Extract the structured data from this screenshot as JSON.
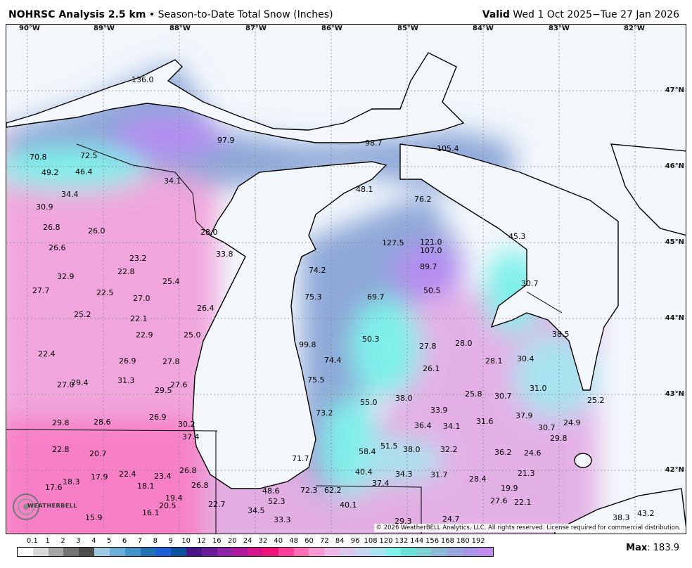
{
  "header": {
    "title_bold": "NOHRSC Analysis 2.5 km",
    "title_sep": "•",
    "title_rest": "Season-to-Date Total Snow (Inches)",
    "valid_label": "Valid",
    "valid_range": "Wed 1 Oct 2025−Tue 27 Jan 2026"
  },
  "longitudes": [
    "90°W",
    "89°W",
    "88°W",
    "87°W",
    "86°W",
    "85°W",
    "84°W",
    "83°W",
    "82°W"
  ],
  "latitudes": [
    "47°N",
    "46°N",
    "45°N",
    "44°N",
    "43°N",
    "42°N"
  ],
  "map_values": [
    "136.0",
    "97.9",
    "98.7",
    "105.4",
    "70.8",
    "72.5",
    "49.2",
    "46.4",
    "34.1",
    "34.4",
    "48.1",
    "76.2",
    "30.9",
    "26.8",
    "26.0",
    "28.0",
    "127.5",
    "121.0",
    "107.0",
    "45.3",
    "26.6",
    "33.8",
    "23.2",
    "22.8",
    "74.2",
    "89.7",
    "32.9",
    "25.4",
    "27.7",
    "22.5",
    "27.0",
    "26.4",
    "75.3",
    "69.7",
    "50.5",
    "30.7",
    "25.2",
    "22.1",
    "22.9",
    "25.0",
    "38.5",
    "99.8",
    "50.3",
    "27.8",
    "28.0",
    "22.4",
    "26.9",
    "27.8",
    "74.4",
    "28.1",
    "30.4",
    "26.1",
    "27.0",
    "29.4",
    "31.3",
    "29.5",
    "27.6",
    "75.5",
    "31.0",
    "25.8",
    "30.7",
    "55.0",
    "38.0",
    "25.2",
    "73.2",
    "33.9",
    "37.9",
    "26.9",
    "29.8",
    "28.6",
    "30.2",
    "36.4",
    "34.1",
    "31.6",
    "30.7",
    "24.9",
    "37.4",
    "29.8",
    "22.8",
    "20.7",
    "58.4",
    "51.5",
    "38.0",
    "32.2",
    "36.2",
    "24.6",
    "71.7",
    "26.8",
    "40.4",
    "34.3",
    "31.7",
    "21.3",
    "17.9",
    "22.4",
    "23.4",
    "17.6",
    "18.3",
    "37.4",
    "28.4",
    "18.1",
    "26.8",
    "48.6",
    "72.3",
    "62.2",
    "19.9",
    "19.4",
    "27.6",
    "22.1",
    "20.5",
    "22.7",
    "52.3",
    "40.1",
    "16.1",
    "34.5",
    "43.2",
    "15.9",
    "33.3",
    "29.3",
    "24.7",
    "38.3"
  ],
  "copyright": "© 2026 WeatherBELL Analytics, LLC. All rights reserved. License required for commercial distribution.",
  "logo_text": "WEATHERBELL",
  "legend": {
    "labels": [
      "0.1",
      "1",
      "2",
      "3",
      "4",
      "5",
      "6",
      "7",
      "8",
      "9",
      "10",
      "12",
      "16",
      "20",
      "24",
      "32",
      "40",
      "48",
      "60",
      "72",
      "84",
      "96",
      "108",
      "120",
      "132",
      "144",
      "156",
      "168",
      "180",
      "192"
    ],
    "colors": [
      "#ffffff",
      "#d9d9d9",
      "#a6a6a6",
      "#737373",
      "#4d4d4d",
      "#9ecae1",
      "#6baed6",
      "#4292c6",
      "#2171b5",
      "#1c5fd6",
      "#08519c",
      "#4a148c",
      "#6a1b9a",
      "#8e24aa",
      "#b0189e",
      "#d4148a",
      "#f0147a",
      "#ff3d9a",
      "#ff6fb5",
      "#f79ad3",
      "#efb6e8",
      "#dbc6f0",
      "#c7d4f2",
      "#a7e3f0",
      "#7ff0ea",
      "#6ee0dc",
      "#7fd0d2",
      "#8ab8d6",
      "#98a6dc",
      "#a894e6",
      "#c08cf0"
    ],
    "max_label": "Max",
    "max_value": "183.9"
  },
  "colors": {
    "land_base": "#f0a6dc",
    "water": "#f3f7fc",
    "high_snow": "#8ea8d8",
    "lake_effect": "#7ff0ea",
    "very_high": "#b48cf0"
  }
}
